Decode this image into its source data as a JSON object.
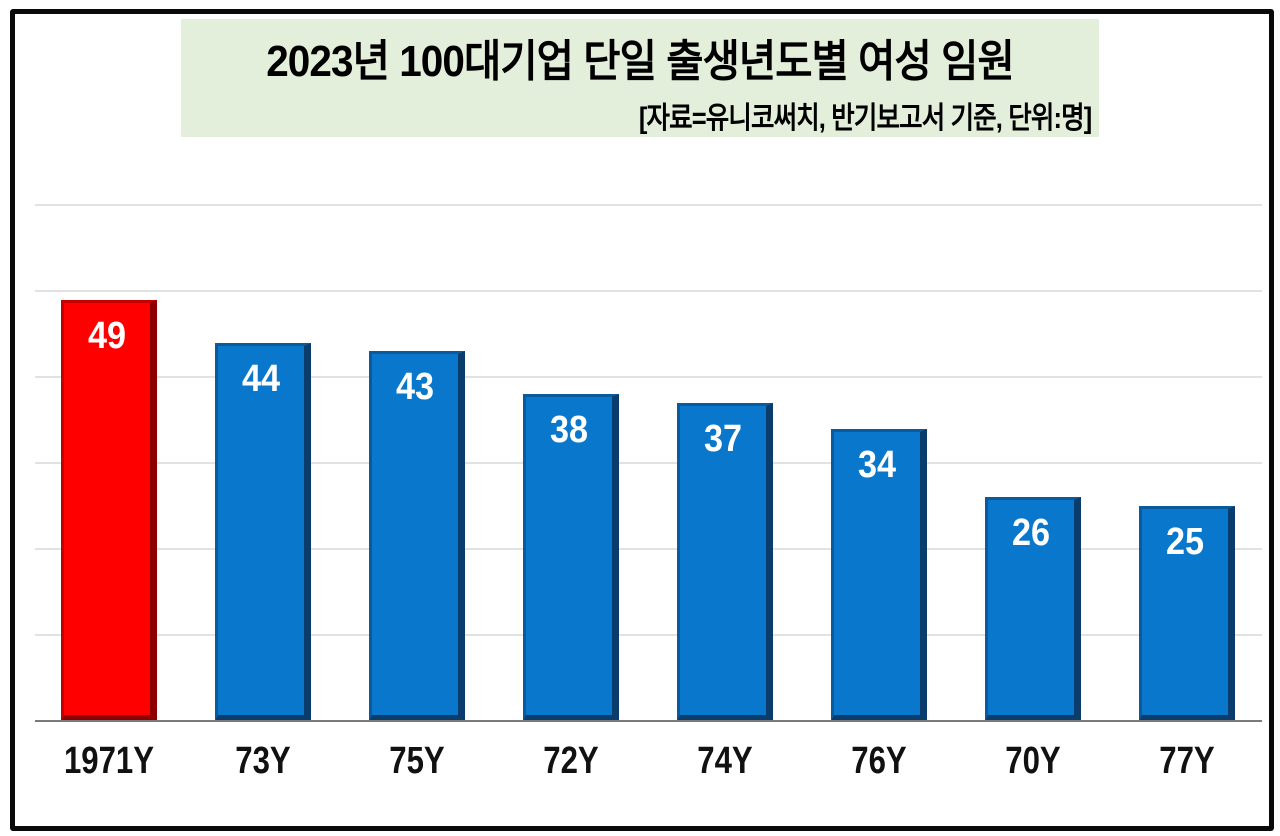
{
  "chart_data": {
    "type": "bar",
    "title": "2023년 100대기업 단일 출생년도별 여성 임원",
    "subtitle": "[자료=유니코써치, 반기보고서 기준, 단위:명]",
    "categories": [
      "1971Y",
      "73Y",
      "75Y",
      "72Y",
      "74Y",
      "76Y",
      "70Y",
      "77Y"
    ],
    "values": [
      49,
      44,
      43,
      38,
      37,
      34,
      26,
      25
    ],
    "xlabel": "",
    "ylabel": "",
    "ylim": [
      0,
      60
    ],
    "grid": true,
    "yticks_visible": false,
    "data_labels": true,
    "highlight_index": 0,
    "colors": {
      "highlight": "#ff0000",
      "default": "#0877cc",
      "title_bg": "#e3eedb"
    }
  },
  "labels": {
    "values": [
      "49",
      "44",
      "43",
      "38",
      "37",
      "34",
      "26",
      "25"
    ]
  }
}
